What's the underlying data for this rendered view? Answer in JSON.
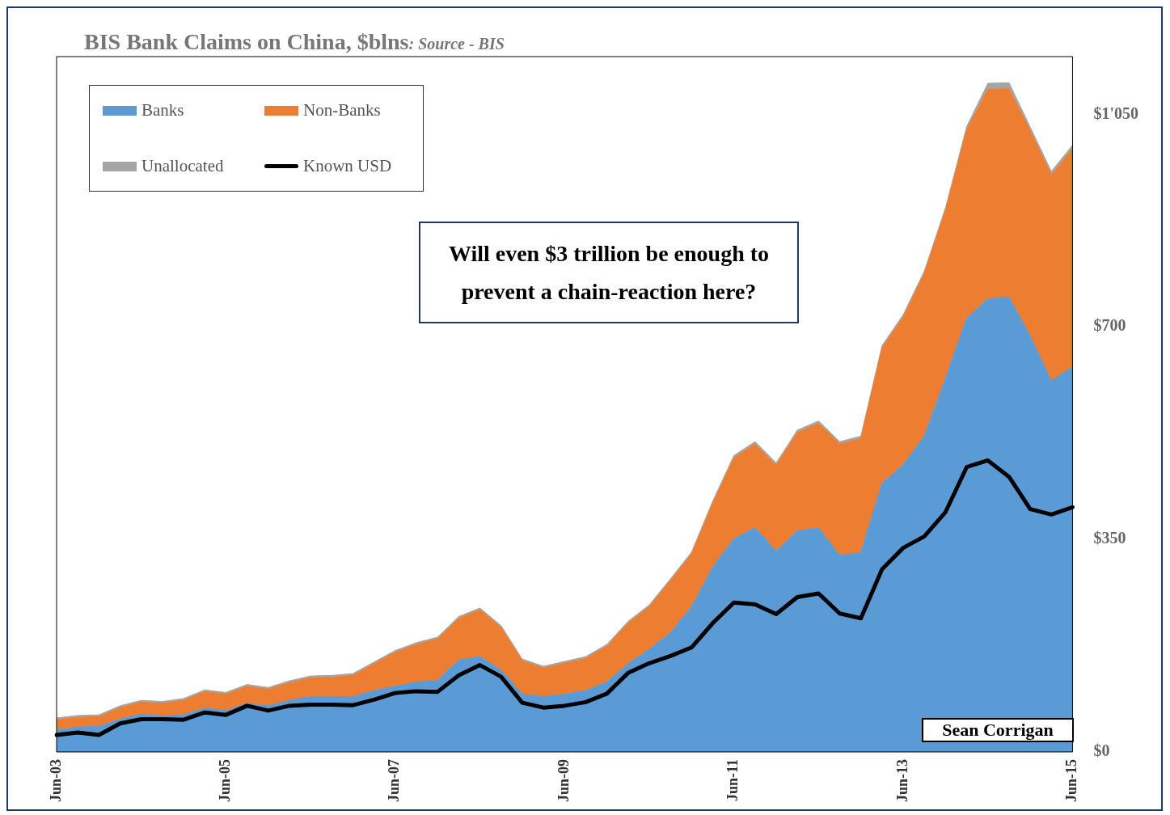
{
  "chart_data": {
    "type": "area",
    "title": "BIS Bank Claims on China, $blns",
    "subtitle": ": Source - BIS",
    "categories": [
      "Jun-03",
      null,
      null,
      null,
      null,
      null,
      null,
      null,
      "Jun-05",
      null,
      null,
      null,
      null,
      null,
      null,
      null,
      "Jun-07",
      null,
      null,
      null,
      null,
      null,
      null,
      null,
      "Jun-09",
      null,
      null,
      null,
      null,
      null,
      null,
      null,
      "Jun-11",
      null,
      null,
      null,
      null,
      null,
      null,
      null,
      "Jun-13",
      null,
      null,
      null,
      null,
      null,
      null,
      null,
      "Jun-15"
    ],
    "stacked": true,
    "series": [
      {
        "name": "Banks",
        "color": "#5b9bd5",
        "values": [
          36,
          41,
          42,
          54,
          62,
          59,
          61,
          72,
          68,
          80,
          76,
          85,
          91,
          91,
          91,
          101,
          108,
          115,
          118,
          151,
          157,
          135,
          95,
          91,
          95,
          101,
          115,
          145,
          169,
          196,
          239,
          304,
          351,
          369,
          331,
          364,
          369,
          324,
          328,
          442,
          473,
          520,
          615,
          714,
          746,
          749,
          685,
          611,
          634
        ]
      },
      {
        "name": "Non-Banks",
        "color": "#ed7d31",
        "values": [
          17,
          16,
          16,
          19,
          20,
          21,
          24,
          27,
          27,
          28,
          27,
          29,
          31,
          32,
          35,
          44,
          56,
          62,
          68,
          69,
          77,
          70,
          55,
          47,
          51,
          53,
          59,
          67,
          70,
          86,
          87,
          105,
          133,
          138,
          141,
          162,
          172,
          183,
          188,
          223,
          243,
          268,
          277,
          310,
          345,
          343,
          338,
          339,
          359
        ]
      },
      {
        "name": "Unallocated",
        "color": "#a5a5a5",
        "values": [
          3,
          3,
          3,
          3,
          3,
          3,
          3,
          3,
          3,
          3,
          3,
          3,
          3,
          3,
          3,
          3,
          3,
          3,
          3,
          3,
          3,
          3,
          3,
          3,
          3,
          3,
          3,
          3,
          3,
          3,
          3,
          4,
          4,
          4,
          4,
          4,
          4,
          4,
          4,
          4,
          4,
          4,
          4,
          6,
          10,
          10,
          6,
          6,
          6
        ]
      },
      {
        "name": "Known USD",
        "type": "line",
        "color": "#000000",
        "values": [
          28,
          32,
          28,
          47,
          54,
          54,
          53,
          65,
          61,
          76,
          68,
          76,
          78,
          78,
          77,
          86,
          97,
          100,
          99,
          126,
          143,
          124,
          81,
          73,
          76,
          82,
          96,
          130,
          146,
          158,
          172,
          212,
          246,
          243,
          227,
          255,
          261,
          228,
          220,
          301,
          336,
          355,
          395,
          469,
          480,
          453,
          400,
          391,
          403
        ]
      }
    ],
    "ylim": [
      0,
      1145
    ],
    "yticks": [
      {
        "value": 0,
        "label": "$0"
      },
      {
        "value": 350,
        "label": "$350"
      },
      {
        "value": 700,
        "label": "$700"
      },
      {
        "value": 1050,
        "label": "$1'050"
      }
    ],
    "grid": false,
    "legend": "top left",
    "annotations": [
      "Will even $3 trillion be enough to prevent a chain-reaction here?",
      "Sean Corrigan"
    ]
  }
}
